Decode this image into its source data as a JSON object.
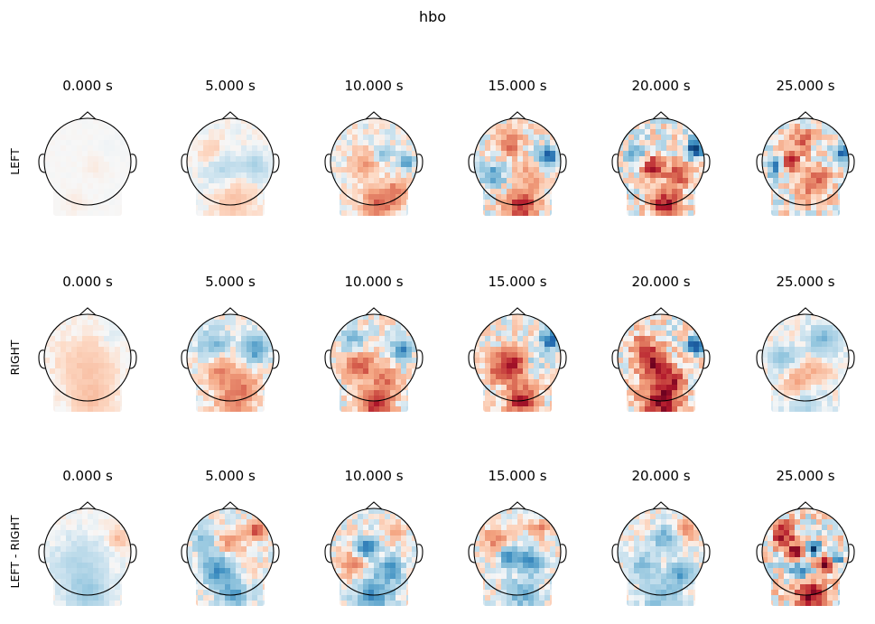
{
  "chart_data": {
    "type": "heatmap",
    "subtype": "topomap-grid",
    "title": "hbo",
    "colormap": "RdBu_r",
    "colors": {
      "positive": "#b2182b",
      "negative": "#2166ac",
      "neutral": "#f7f7f7",
      "outline": "#000000"
    },
    "times": [
      "0.000 s",
      "5.000 s",
      "10.000 s",
      "15.000 s",
      "20.000 s",
      "25.000 s"
    ],
    "rows": [
      {
        "label": "LEFT",
        "maps": [
          {
            "time": "0.000 s",
            "intensity": 0.15,
            "blobs": [
              [
                0.2,
                0.1,
                0.2,
                0.15
              ],
              [
                -0.3,
                0.9,
                0.2,
                0.15
              ],
              [
                0.5,
                -0.3,
                0.2,
                -0.1
              ]
            ]
          },
          {
            "time": "5.000 s",
            "intensity": 0.35,
            "blobs": [
              [
                0.55,
                0.1,
                0.2,
                -0.5
              ],
              [
                -0.2,
                0.15,
                0.25,
                -0.4
              ],
              [
                0.1,
                0.9,
                0.3,
                0.4
              ],
              [
                -0.4,
                -0.2,
                0.2,
                0.3
              ]
            ]
          },
          {
            "time": "10.000 s",
            "intensity": 0.6,
            "blobs": [
              [
                0.75,
                0.0,
                0.12,
                -0.8
              ],
              [
                -0.2,
                0.05,
                0.22,
                0.5
              ],
              [
                0.1,
                1.0,
                0.25,
                0.8
              ],
              [
                0.5,
                0.7,
                0.2,
                0.6
              ],
              [
                0.2,
                -0.2,
                0.15,
                -0.4
              ]
            ]
          },
          {
            "time": "15.000 s",
            "intensity": 0.8,
            "blobs": [
              [
                0.7,
                -0.1,
                0.15,
                -1.0
              ],
              [
                -0.55,
                0.3,
                0.2,
                -0.5
              ],
              [
                0.1,
                1.0,
                0.25,
                0.9
              ],
              [
                -0.2,
                -0.4,
                0.2,
                0.6
              ],
              [
                0.3,
                0.3,
                0.2,
                0.4
              ]
            ]
          },
          {
            "time": "20.000 s",
            "intensity": 0.9,
            "blobs": [
              [
                0.8,
                -0.3,
                0.15,
                -1.0
              ],
              [
                -0.2,
                0.1,
                0.2,
                0.9
              ],
              [
                0.1,
                1.0,
                0.25,
                0.8
              ],
              [
                0.4,
                0.3,
                0.2,
                0.6
              ],
              [
                -0.5,
                -0.1,
                0.2,
                -0.4
              ]
            ]
          },
          {
            "time": "25.000 s",
            "intensity": 0.9,
            "blobs": [
              [
                0.85,
                -0.2,
                0.12,
                -0.9
              ],
              [
                -0.35,
                0.0,
                0.15,
                1.0
              ],
              [
                -0.7,
                0.1,
                0.15,
                -0.6
              ],
              [
                0.2,
                0.5,
                0.25,
                0.6
              ],
              [
                -0.1,
                -0.5,
                0.2,
                0.5
              ]
            ]
          }
        ]
      },
      {
        "label": "RIGHT",
        "maps": [
          {
            "time": "0.000 s",
            "intensity": 0.3,
            "blobs": [
              [
                0.0,
                0.2,
                0.45,
                0.4
              ],
              [
                0.1,
                1.0,
                0.3,
                0.4
              ],
              [
                0.6,
                -0.5,
                0.2,
                -0.2
              ]
            ]
          },
          {
            "time": "5.000 s",
            "intensity": 0.6,
            "blobs": [
              [
                0.6,
                -0.2,
                0.2,
                -0.8
              ],
              [
                -0.4,
                -0.3,
                0.25,
                -0.5
              ],
              [
                -0.2,
                0.3,
                0.25,
                0.6
              ],
              [
                0.1,
                1.0,
                0.3,
                0.6
              ],
              [
                0.4,
                0.6,
                0.2,
                0.4
              ]
            ]
          },
          {
            "time": "10.000 s",
            "intensity": 0.75,
            "blobs": [
              [
                0.65,
                -0.15,
                0.15,
                -0.9
              ],
              [
                -0.3,
                0.2,
                0.25,
                0.7
              ],
              [
                0.05,
                1.05,
                0.25,
                1.0
              ],
              [
                0.3,
                0.5,
                0.2,
                0.5
              ],
              [
                -0.5,
                -0.4,
                0.2,
                -0.4
              ]
            ]
          },
          {
            "time": "15.000 s",
            "intensity": 0.8,
            "blobs": [
              [
                0.75,
                -0.4,
                0.15,
                -0.9
              ],
              [
                -0.1,
                0.15,
                0.25,
                0.9
              ],
              [
                0.1,
                1.0,
                0.25,
                0.9
              ],
              [
                -0.5,
                0.3,
                0.2,
                0.5
              ],
              [
                0.3,
                0.1,
                0.15,
                -0.4
              ]
            ]
          },
          {
            "time": "20.000 s",
            "intensity": 0.9,
            "blobs": [
              [
                0.8,
                -0.3,
                0.12,
                -1.0
              ],
              [
                -0.2,
                0.1,
                0.25,
                0.9
              ],
              [
                0.0,
                1.0,
                0.3,
                1.0
              ],
              [
                0.3,
                0.5,
                0.2,
                0.6
              ],
              [
                -0.5,
                -0.3,
                0.2,
                0.4
              ]
            ]
          },
          {
            "time": "25.000 s",
            "intensity": 0.5,
            "blobs": [
              [
                0.4,
                -0.4,
                0.25,
                -0.6
              ],
              [
                -0.5,
                0.0,
                0.2,
                -0.5
              ],
              [
                0.2,
                0.3,
                0.25,
                0.4
              ],
              [
                -0.2,
                0.6,
                0.2,
                0.5
              ],
              [
                0.0,
                1.0,
                0.3,
                -0.3
              ]
            ]
          }
        ]
      },
      {
        "label": "LEFT - RIGHT",
        "maps": [
          {
            "time": "0.000 s",
            "intensity": 0.35,
            "blobs": [
              [
                -0.2,
                0.3,
                0.4,
                -0.4
              ],
              [
                0.0,
                1.0,
                0.3,
                -0.6
              ],
              [
                0.7,
                -0.3,
                0.15,
                0.5
              ]
            ]
          },
          {
            "time": "5.000 s",
            "intensity": 0.65,
            "blobs": [
              [
                0.6,
                -0.5,
                0.15,
                0.9
              ],
              [
                -0.3,
                0.4,
                0.25,
                -0.8
              ],
              [
                0.0,
                -0.2,
                0.2,
                0.5
              ],
              [
                0.1,
                1.0,
                0.25,
                -0.6
              ],
              [
                -0.6,
                -0.3,
                0.2,
                -0.4
              ]
            ]
          },
          {
            "time": "10.000 s",
            "intensity": 0.7,
            "blobs": [
              [
                -0.15,
                -0.1,
                0.15,
                -1.0
              ],
              [
                0.4,
                0.4,
                0.2,
                -0.6
              ],
              [
                -0.5,
                0.3,
                0.2,
                0.5
              ],
              [
                0.0,
                1.0,
                0.3,
                -0.7
              ],
              [
                0.5,
                -0.5,
                0.15,
                0.4
              ]
            ]
          },
          {
            "time": "15.000 s",
            "intensity": 0.7,
            "blobs": [
              [
                -0.2,
                0.1,
                0.15,
                -0.9
              ],
              [
                0.3,
                0.2,
                0.2,
                -0.7
              ],
              [
                -0.5,
                -0.3,
                0.2,
                0.5
              ],
              [
                0.1,
                1.0,
                0.25,
                -0.5
              ],
              [
                0.5,
                -0.5,
                0.15,
                0.5
              ]
            ]
          },
          {
            "time": "20.000 s",
            "intensity": 0.6,
            "blobs": [
              [
                0.1,
                -0.3,
                0.2,
                -0.6
              ],
              [
                0.5,
                0.5,
                0.2,
                -0.7
              ],
              [
                -0.4,
                0.3,
                0.2,
                -0.5
              ],
              [
                0.6,
                -0.5,
                0.15,
                0.6
              ],
              [
                0.0,
                1.0,
                0.3,
                -0.5
              ]
            ]
          },
          {
            "time": "25.000 s",
            "intensity": 1.0,
            "blobs": [
              [
                -0.2,
                0.0,
                0.12,
                1.0
              ],
              [
                0.2,
                -0.1,
                0.1,
                -1.0
              ],
              [
                0.5,
                0.3,
                0.15,
                0.9
              ],
              [
                -0.5,
                -0.4,
                0.2,
                0.8
              ],
              [
                0.1,
                1.0,
                0.25,
                0.8
              ],
              [
                0.7,
                0.2,
                0.12,
                -0.7
              ],
              [
                -0.1,
                0.5,
                0.15,
                -0.6
              ]
            ]
          }
        ]
      }
    ]
  }
}
